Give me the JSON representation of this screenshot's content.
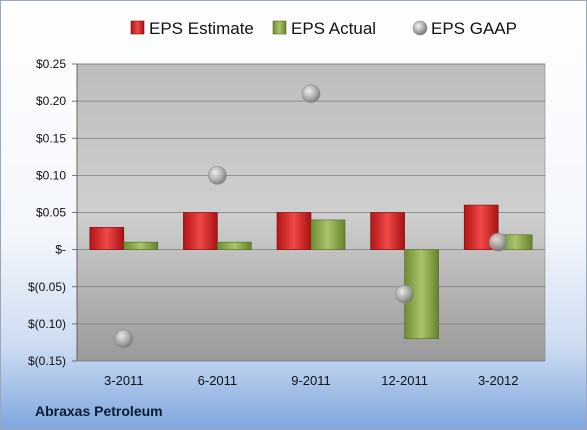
{
  "chart_data": {
    "type": "bar",
    "categories": [
      "3-2011",
      "6-2011",
      "9-2011",
      "12-2011",
      "3-2012"
    ],
    "series": [
      {
        "name": "EPS Estimate",
        "kind": "bar",
        "color": "#d42a2a",
        "values": [
          0.03,
          0.05,
          0.05,
          0.05,
          0.06
        ]
      },
      {
        "name": "EPS Actual",
        "kind": "bar",
        "color": "#8cab4a",
        "values": [
          0.01,
          0.01,
          0.04,
          -0.12,
          0.02
        ]
      },
      {
        "name": "EPS GAAP",
        "kind": "marker",
        "color": "#a8a8a8",
        "values": [
          -0.12,
          0.1,
          0.21,
          -0.06,
          0.01
        ]
      }
    ],
    "ylim": [
      -0.15,
      0.25
    ],
    "yticks": [
      0.25,
      0.2,
      0.15,
      0.1,
      0.05,
      0,
      -0.05,
      -0.1,
      -0.15
    ],
    "ytick_labels": [
      "$0.25",
      "$0.20",
      "$0.15",
      "$0.10",
      "$0.05",
      "$-",
      "$(0.05)",
      "$(0.10)",
      "$(0.15)"
    ],
    "grid": true,
    "legend_position": "top"
  },
  "footer": {
    "company": "Abraxas Petroleum"
  }
}
